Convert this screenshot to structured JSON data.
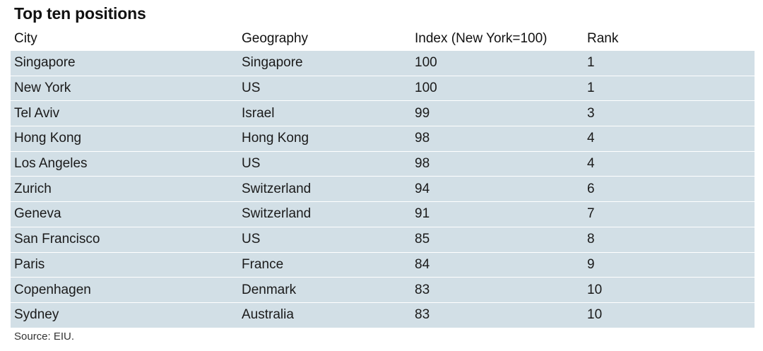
{
  "title": "Top ten positions",
  "source": "Source: EIU.",
  "chart_data": {
    "type": "table",
    "title": "Top ten positions",
    "columns": [
      "City",
      "Geography",
      "Index (New York=100)",
      "Rank"
    ],
    "rows": [
      [
        "Singapore",
        "Singapore",
        "100",
        "1"
      ],
      [
        "New York",
        "US",
        "100",
        "1"
      ],
      [
        "Tel Aviv",
        "Israel",
        "99",
        "3"
      ],
      [
        "Hong Kong",
        "Hong Kong",
        "98",
        "4"
      ],
      [
        "Los Angeles",
        "US",
        "98",
        "4"
      ],
      [
        "Zurich",
        "Switzerland",
        "94",
        "6"
      ],
      [
        "Geneva",
        "Switzerland",
        "91",
        "7"
      ],
      [
        "San Francisco",
        "US",
        "85",
        "8"
      ],
      [
        "Paris",
        "France",
        "84",
        "9"
      ],
      [
        "Copenhagen",
        "Denmark",
        "83",
        "10"
      ],
      [
        "Sydney",
        "Australia",
        "83",
        "10"
      ]
    ],
    "source": "Source: EIU.",
    "colors": {
      "row_background": "#d2dfe6",
      "row_divider": "#ffffff"
    }
  }
}
